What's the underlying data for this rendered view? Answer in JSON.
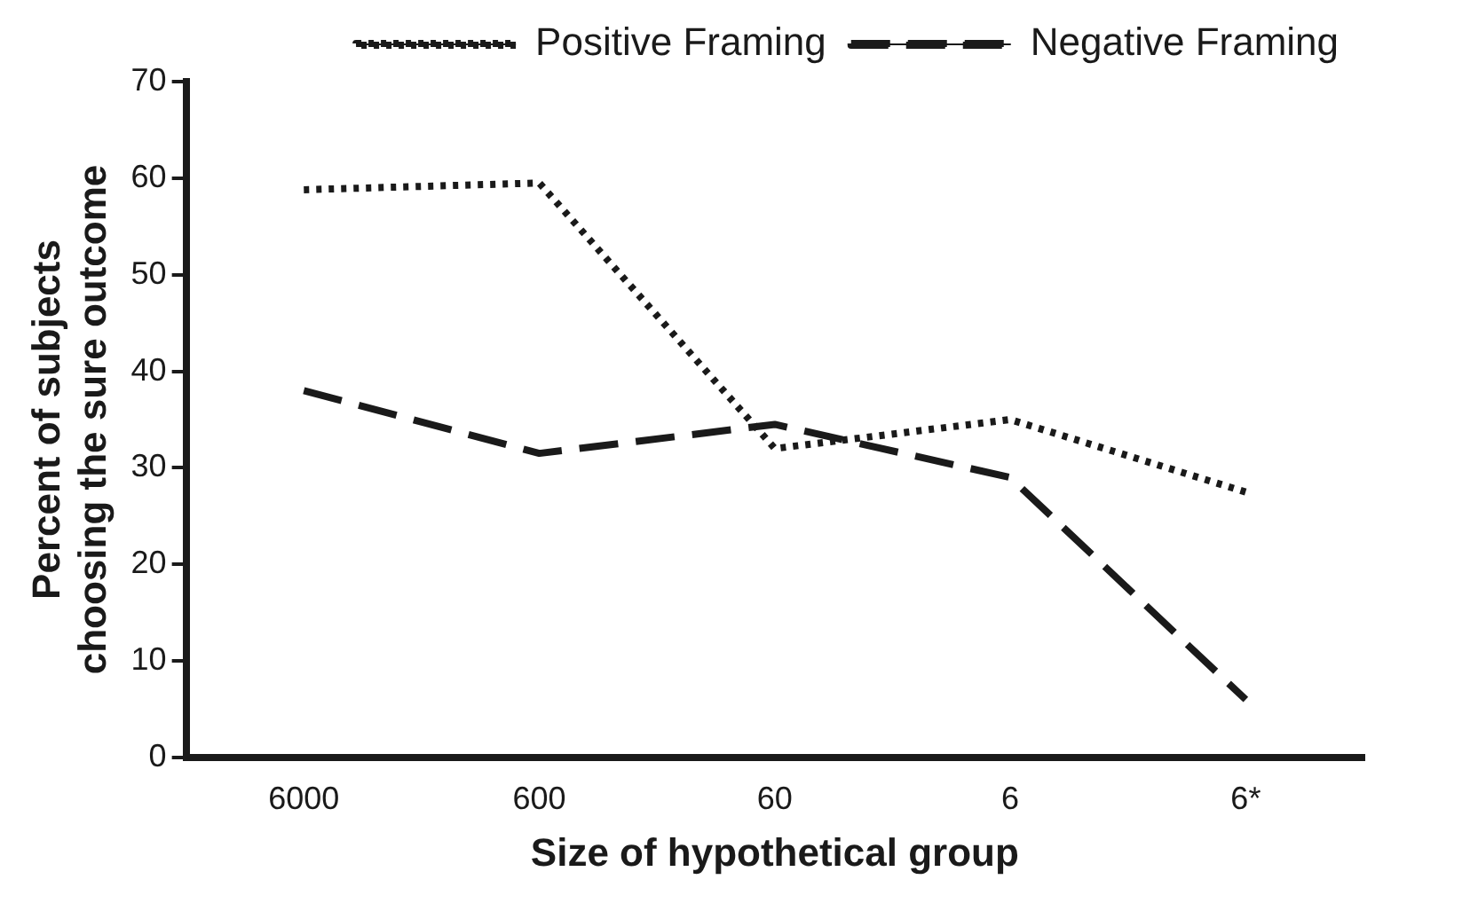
{
  "chart_data": {
    "type": "line",
    "xlabel": "Size of hypothetical group",
    "ylabel": "Percent of subjects\nchoosing the sure outcome",
    "categories": [
      "6000",
      "600",
      "60",
      "6",
      "6*"
    ],
    "series": [
      {
        "name": "Positive Framing",
        "color": "#1a1a1a",
        "line_style": "dotted",
        "values": [
          58.8,
          59.5,
          32,
          35,
          27.5
        ]
      },
      {
        "name": "Negative Framing",
        "color": "#1a1a1a",
        "line_style": "dashed",
        "values": [
          38,
          31.5,
          34.5,
          29,
          6
        ]
      }
    ],
    "ylim": [
      0,
      70
    ],
    "yticks": [
      0,
      10,
      20,
      30,
      40,
      50,
      60,
      70
    ],
    "grid": false,
    "legend": "top right",
    "marker": "none"
  }
}
